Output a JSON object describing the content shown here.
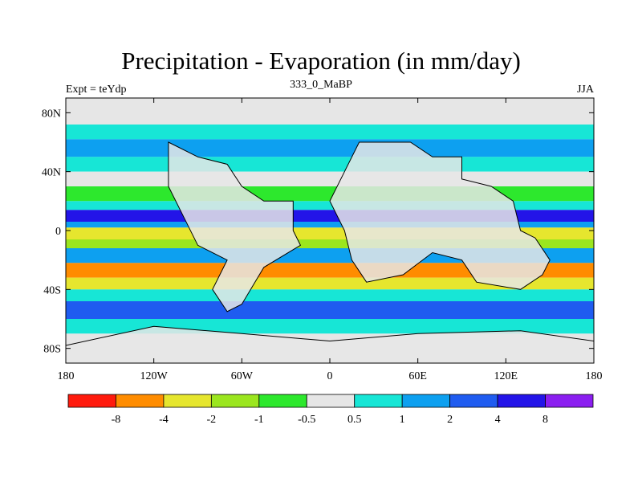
{
  "chart_data": {
    "type": "heatmap",
    "title": "Precipitation - Evaporation (in mm/day)",
    "subtitle": "333_0_MaBP",
    "left_string": "Expt = teYdp",
    "right_string": "JJA",
    "x_ticks": [
      "180",
      "120W",
      "60W",
      "0",
      "60E",
      "120E",
      "180"
    ],
    "y_ticks": [
      "80N",
      "40N",
      "0",
      "40S",
      "80S"
    ],
    "xlim": [
      -180,
      180
    ],
    "ylim": [
      -90,
      90
    ],
    "colorbar": {
      "levels": [
        "-8",
        "-4",
        "-2",
        "-1",
        "-0.5",
        "0.5",
        "1",
        "2",
        "4",
        "8"
      ],
      "colors": [
        "#ff1a0d",
        "#ff8c00",
        "#e6e62e",
        "#9be61e",
        "#2de82d",
        "#e6e6e6",
        "#17e6d6",
        "#0da0f0",
        "#1f5cf0",
        "#2314e8",
        "#8b1ef0"
      ]
    },
    "bands": [
      {
        "lat_max": 90,
        "lat_min": 72,
        "color_index": 5
      },
      {
        "lat_max": 72,
        "lat_min": 62,
        "color_index": 6
      },
      {
        "lat_max": 62,
        "lat_min": 50,
        "color_index": 7
      },
      {
        "lat_max": 50,
        "lat_min": 40,
        "color_index": 6
      },
      {
        "lat_max": 40,
        "lat_min": 30,
        "color_index": 5
      },
      {
        "lat_max": 30,
        "lat_min": 20,
        "color_index": 4
      },
      {
        "lat_max": 20,
        "lat_min": 14,
        "color_index": 6
      },
      {
        "lat_max": 14,
        "lat_min": 6,
        "color_index": 9
      },
      {
        "lat_max": 6,
        "lat_min": 2,
        "color_index": 7
      },
      {
        "lat_max": 2,
        "lat_min": -6,
        "color_index": 2
      },
      {
        "lat_max": -6,
        "lat_min": -12,
        "color_index": 3
      },
      {
        "lat_max": -12,
        "lat_min": -22,
        "color_index": 7
      },
      {
        "lat_max": -22,
        "lat_min": -32,
        "color_index": 1
      },
      {
        "lat_max": -32,
        "lat_min": -40,
        "color_index": 2
      },
      {
        "lat_max": -40,
        "lat_min": -48,
        "color_index": 6
      },
      {
        "lat_max": -48,
        "lat_min": -60,
        "color_index": 8
      },
      {
        "lat_max": -60,
        "lat_min": -70,
        "color_index": 6
      },
      {
        "lat_max": -70,
        "lat_min": -90,
        "color_index": 5
      }
    ]
  }
}
